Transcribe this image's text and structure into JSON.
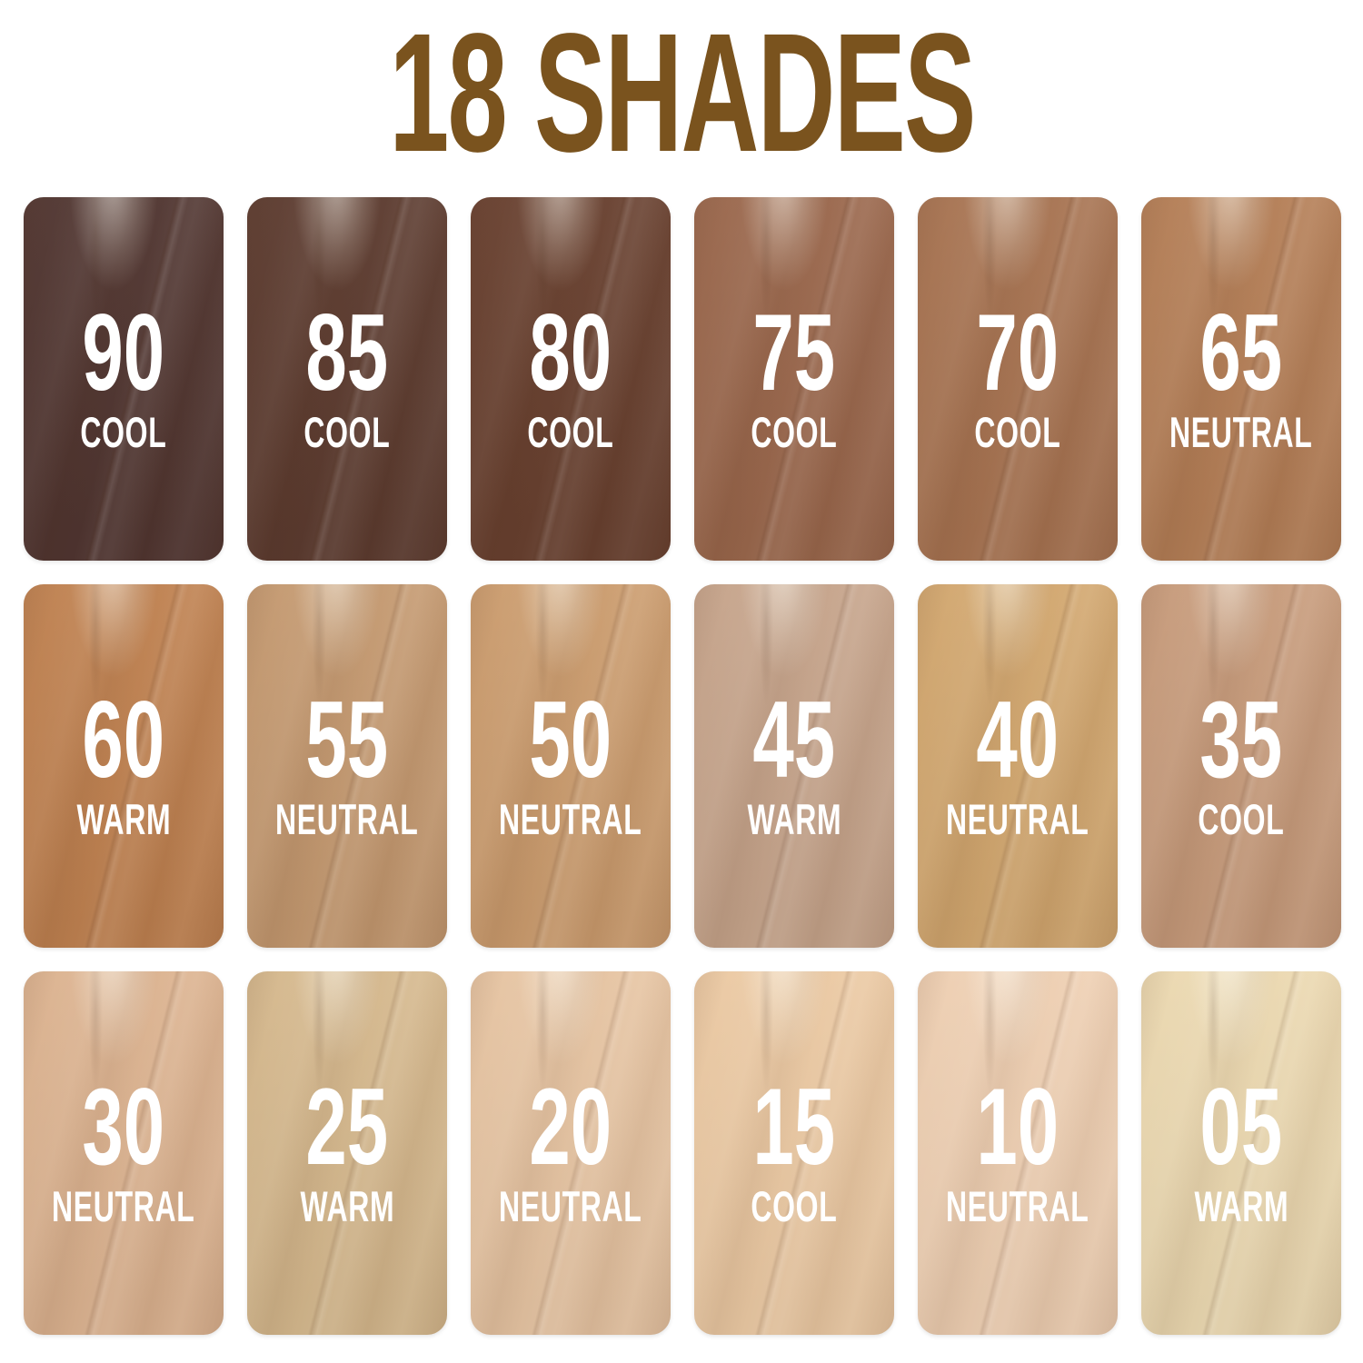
{
  "title": "18 SHADES",
  "colors": {
    "title_text": "#7a531e",
    "background": "#ffffff",
    "swatch_label_text": "#ffffff"
  },
  "chart_data": {
    "type": "table",
    "title": "18 SHADES",
    "columns": [
      "shade_number",
      "undertone",
      "swatch_color"
    ],
    "layout": {
      "grid_columns": 6,
      "grid_rows": 3,
      "order": "left-to-right, top-to-bottom"
    },
    "rows": [
      {
        "number": "90",
        "undertone": "COOL",
        "color": "#503530"
      },
      {
        "number": "85",
        "undertone": "COOL",
        "color": "#5c3b2f"
      },
      {
        "number": "80",
        "undertone": "COOL",
        "color": "#68402f"
      },
      {
        "number": "75",
        "undertone": "COOL",
        "color": "#9a674c"
      },
      {
        "number": "70",
        "undertone": "COOL",
        "color": "#a77351"
      },
      {
        "number": "65",
        "undertone": "NEUTRAL",
        "color": "#b47e56"
      },
      {
        "number": "60",
        "undertone": "WARM",
        "color": "#bf8150"
      },
      {
        "number": "55",
        "undertone": "NEUTRAL",
        "color": "#c49970"
      },
      {
        "number": "50",
        "undertone": "NEUTRAL",
        "color": "#cb9c6e"
      },
      {
        "number": "45",
        "undertone": "WARM",
        "color": "#c6a48b"
      },
      {
        "number": "40",
        "undertone": "NEUTRAL",
        "color": "#d2a76f"
      },
      {
        "number": "35",
        "undertone": "COOL",
        "color": "#c79b7b"
      },
      {
        "number": "30",
        "undertone": "NEUTRAL",
        "color": "#dcb390"
      },
      {
        "number": "25",
        "undertone": "WARM",
        "color": "#d5b88d"
      },
      {
        "number": "20",
        "undertone": "NEUTRAL",
        "color": "#e6c4a2"
      },
      {
        "number": "15",
        "undertone": "COOL",
        "color": "#ebc9a3"
      },
      {
        "number": "10",
        "undertone": "NEUTRAL",
        "color": "#eecfb2"
      },
      {
        "number": "05",
        "undertone": "WARM",
        "color": "#ebd8b0"
      }
    ]
  }
}
